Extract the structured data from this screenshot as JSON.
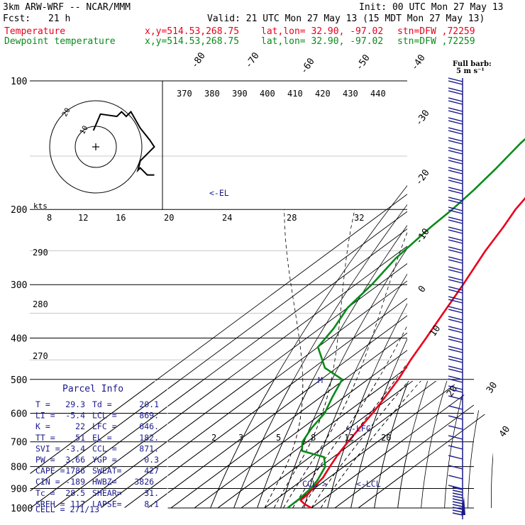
{
  "header": {
    "model": "3km ARW-WRF -- NCAR/MMM",
    "init": "Init: 00 UTC Mon 27 May 13",
    "fcst_label": "Fcst:",
    "fcst_value": "21 h",
    "valid": "Valid: 21 UTC Mon 27 May 13 (15 MDT Mon 27 May 13)",
    "temp_label": "Temperature",
    "dew_label": "Dewpoint temperature",
    "xy": "x,y=514.53,268.75",
    "latlon": "lat,lon= 32.90, -97.02",
    "stn": "stn=DFW ,72259"
  },
  "barb_label_1": "Full barb:",
  "barb_label_2": "5 m s⁻¹",
  "hodograph": {
    "units": "kts",
    "ring_labels": [
      "10",
      "20"
    ],
    "center": "+"
  },
  "labels": {
    "el_marker": "<-EL",
    "lfc_marker": "<-LFC",
    "lcl_marker": "<-LCL",
    "ccl_marker": "CCL->",
    "m_marker": "M"
  },
  "parcel_info": {
    "title": "Parcel Info",
    "rows": [
      [
        "T  =",
        "29.3",
        "Td =",
        "20.1"
      ],
      [
        "LI =",
        "-5.4",
        "LCL =",
        "869."
      ],
      [
        "K  =",
        "22",
        "LFC =",
        "646."
      ],
      [
        "TT =",
        "51",
        "EL =",
        "182."
      ],
      [
        "SVI =",
        "-3.4",
        "CCL =",
        "871."
      ],
      [
        "PW =",
        "3.66",
        "YGP =",
        "0.3"
      ],
      [
        "CAPE =",
        "1786",
        "SWEAT=",
        "427"
      ],
      [
        "CIN =",
        "-189",
        "HWBZ=",
        "3826."
      ],
      [
        "Tc =",
        "28.5",
        "SHEAR=",
        "31."
      ],
      [
        "SREH =",
        "117",
        "LAPSE=",
        "8.1"
      ]
    ],
    "cell": "CELL = 271/13"
  },
  "chart_data": {
    "type": "line",
    "title": "3km ARW-WRF -- NCAR/MMM",
    "ylabel": "",
    "xlabel": "",
    "y_scale": "log-pressure",
    "ylim": [
      1000,
      100
    ],
    "pressure_ticks": [
      "100",
      "200",
      "300",
      "400",
      "500",
      "600",
      "700",
      "800",
      "900",
      "1000"
    ],
    "isotherm_labels": [
      "-80",
      "-70",
      "-60",
      "-50",
      "-40",
      "-30",
      "-20",
      "-10",
      "0",
      "10",
      "20",
      "30",
      "40"
    ],
    "theta_labels": [
      "370",
      "380",
      "390",
      "400",
      "410",
      "420",
      "430",
      "440"
    ],
    "mixing_ratio_labels_upper": [
      "8",
      "12",
      "16",
      "20",
      "24",
      "28",
      "32"
    ],
    "mixing_ratio_labels_lower": [
      "2",
      "3",
      "5",
      "8",
      "12",
      "20"
    ],
    "theta_labels_left": [
      "290",
      "280",
      "270"
    ],
    "series": [
      {
        "name": "Temperature",
        "color": "#e8001c",
        "points": [
          [
            1000,
            30
          ],
          [
            980,
            25
          ],
          [
            960,
            21
          ],
          [
            925,
            20.5
          ],
          [
            900,
            19.2
          ],
          [
            850,
            17.5
          ],
          [
            800,
            14.0
          ],
          [
            750,
            10.5
          ],
          [
            700,
            7.5
          ],
          [
            650,
            4.5
          ],
          [
            600,
            1.5
          ],
          [
            550,
            -2.5
          ],
          [
            500,
            -7
          ],
          [
            450,
            -13
          ],
          [
            400,
            -19
          ],
          [
            350,
            -26
          ],
          [
            300,
            -34
          ],
          [
            250,
            -44
          ],
          [
            220,
            -50
          ],
          [
            200,
            -55
          ],
          [
            180,
            -59
          ],
          [
            165,
            -61
          ],
          [
            150,
            -65
          ],
          [
            140,
            -67
          ],
          [
            130,
            -69
          ],
          [
            120,
            -73
          ],
          [
            110,
            -76
          ],
          [
            100,
            -79
          ]
        ]
      },
      {
        "name": "Dewpoint temperature",
        "color": "#0a8a1a",
        "points": [
          [
            1000,
            19.8
          ],
          [
            950,
            19.5
          ],
          [
            900,
            18.5
          ],
          [
            860,
            16.5
          ],
          [
            800,
            12
          ],
          [
            760,
            6
          ],
          [
            735,
            -7
          ],
          [
            700,
            -12
          ],
          [
            650,
            -16
          ],
          [
            600,
            -19
          ],
          [
            550,
            -25
          ],
          [
            500,
            -31
          ],
          [
            470,
            -45
          ],
          [
            420,
            -60
          ],
          [
            380,
            -64
          ],
          [
            340,
            -70
          ],
          [
            300,
            -73
          ],
          [
            260,
            -78
          ],
          [
            220,
            -81
          ],
          [
            200,
            -82
          ],
          [
            180,
            -84
          ],
          [
            160,
            -87
          ],
          [
            140,
            -91
          ],
          [
            120,
            -94
          ],
          [
            100,
            -95
          ]
        ]
      }
    ],
    "hodograph_points": [
      [
        -1,
        7
      ],
      [
        2,
        14
      ],
      [
        9,
        13
      ],
      [
        11,
        15
      ],
      [
        13,
        13
      ],
      [
        15,
        15
      ],
      [
        19,
        8
      ],
      [
        23,
        3
      ],
      [
        25,
        0
      ],
      [
        23,
        -2
      ],
      [
        19,
        -6
      ],
      [
        18,
        -10
      ],
      [
        19,
        -9
      ],
      [
        21,
        -11
      ],
      [
        22,
        -12
      ],
      [
        25,
        -12
      ]
    ],
    "wind_barbs_m_s": [
      5,
      10,
      15,
      20,
      25,
      30,
      35,
      40,
      45,
      50
    ]
  }
}
